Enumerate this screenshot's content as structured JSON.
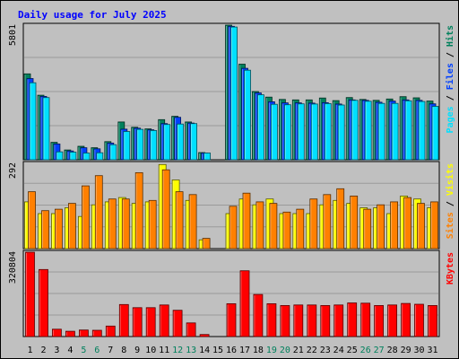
{
  "colors": {
    "background": "#c0c0c0",
    "panel": "#c0c0c0",
    "grid": "#9a9a9a",
    "title": "#0000ff",
    "hits": "#00805c",
    "files": "#0040ff",
    "pages": "#00e0ff",
    "visits": "#ffff00",
    "sites": "#ff8000",
    "kbytes": "#ff0000",
    "weekend_day": "#00805c",
    "weekday": "#000000"
  },
  "chart_data": {
    "type": "bar",
    "title": "Daily usage for July 2025",
    "days": [
      "1",
      "2",
      "3",
      "4",
      "5",
      "6",
      "7",
      "8",
      "9",
      "10",
      "11",
      "12",
      "13",
      "14",
      "15",
      "16",
      "17",
      "18",
      "19",
      "20",
      "21",
      "22",
      "23",
      "24",
      "25",
      "26",
      "27",
      "28",
      "29",
      "30",
      "31"
    ],
    "weekend_days": [
      "5",
      "6",
      "12",
      "13",
      "19",
      "20",
      "26",
      "27"
    ],
    "panels": [
      {
        "max_label": "5801",
        "max": 5801,
        "legend": [
          {
            "text": "Pages",
            "color_key": "pages"
          },
          {
            "text": " / ",
            "color_key": "weekday"
          },
          {
            "text": "Files",
            "color_key": "files"
          },
          {
            "text": " / ",
            "color_key": "weekday"
          },
          {
            "text": "Hits",
            "color_key": "hits"
          }
        ],
        "series": [
          {
            "name": "Hits",
            "color_key": "hits",
            "values": [
              3700,
              2780,
              750,
              420,
              580,
              520,
              780,
              1630,
              1400,
              1330,
              1730,
              1870,
              1630,
              310,
              0,
              5801,
              4120,
              2940,
              2700,
              2600,
              2580,
              2580,
              2660,
              2550,
              2680,
              2600,
              2560,
              2620,
              2720,
              2670,
              2530
            ]
          },
          {
            "name": "Files",
            "color_key": "files",
            "values": [
              3500,
              2730,
              680,
              380,
              520,
              470,
              720,
              1320,
              1360,
              1290,
              1560,
              1830,
              1580,
              290,
              0,
              5750,
              3940,
              2880,
              2500,
              2450,
              2450,
              2440,
              2460,
              2400,
              2580,
              2560,
              2480,
              2530,
              2580,
              2560,
              2410
            ]
          },
          {
            "name": "Pages",
            "color_key": "pages",
            "values": [
              3320,
              2680,
              340,
              330,
              290,
              300,
              650,
              1220,
              1310,
              1260,
              1520,
              1540,
              1560,
              290,
              0,
              5720,
              3860,
              2800,
              2390,
              2370,
              2410,
              2400,
              2420,
              2360,
              2560,
              2520,
              2430,
              2430,
              2540,
              2510,
              2300
            ]
          }
        ]
      },
      {
        "max_label": "292",
        "max": 292,
        "legend": [
          {
            "text": "Sites",
            "color_key": "sites"
          },
          {
            "text": " / ",
            "color_key": "weekday"
          },
          {
            "text": "Visits",
            "color_key": "visits"
          }
        ],
        "series": [
          {
            "name": "Visits",
            "color_key": "visits",
            "values": [
              160,
              120,
              120,
              140,
              110,
              150,
              160,
              175,
              155,
              160,
              288,
              235,
              165,
              30,
              0,
              120,
              170,
              150,
              170,
              120,
              120,
              120,
              150,
              165,
              155,
              140,
              140,
              120,
              180,
              170,
              140
            ]
          },
          {
            "name": "Sites",
            "color_key": "sites",
            "values": [
              195,
              130,
              135,
              155,
              215,
              250,
              170,
              170,
              260,
              165,
              270,
              195,
              185,
              35,
              0,
              145,
              190,
              160,
              155,
              125,
              135,
              170,
              185,
              205,
              180,
              135,
              150,
              160,
              175,
              155,
              160
            ]
          }
        ]
      },
      {
        "max_label": "320804",
        "max": 320804,
        "legend": [
          {
            "text": "KBytes",
            "color_key": "kbytes"
          }
        ],
        "series": [
          {
            "name": "KBytes",
            "color_key": "kbytes",
            "values": [
              320804,
              255000,
              28000,
              20000,
              25000,
              24000,
              40000,
              122000,
              110000,
              110000,
              120000,
              100000,
              52000,
              8000,
              0,
              125000,
              250000,
              160000,
              125000,
              118000,
              120000,
              120000,
              118000,
              120000,
              128000,
              127000,
              118000,
              120000,
              126000,
              123000,
              118000
            ]
          }
        ]
      }
    ]
  }
}
